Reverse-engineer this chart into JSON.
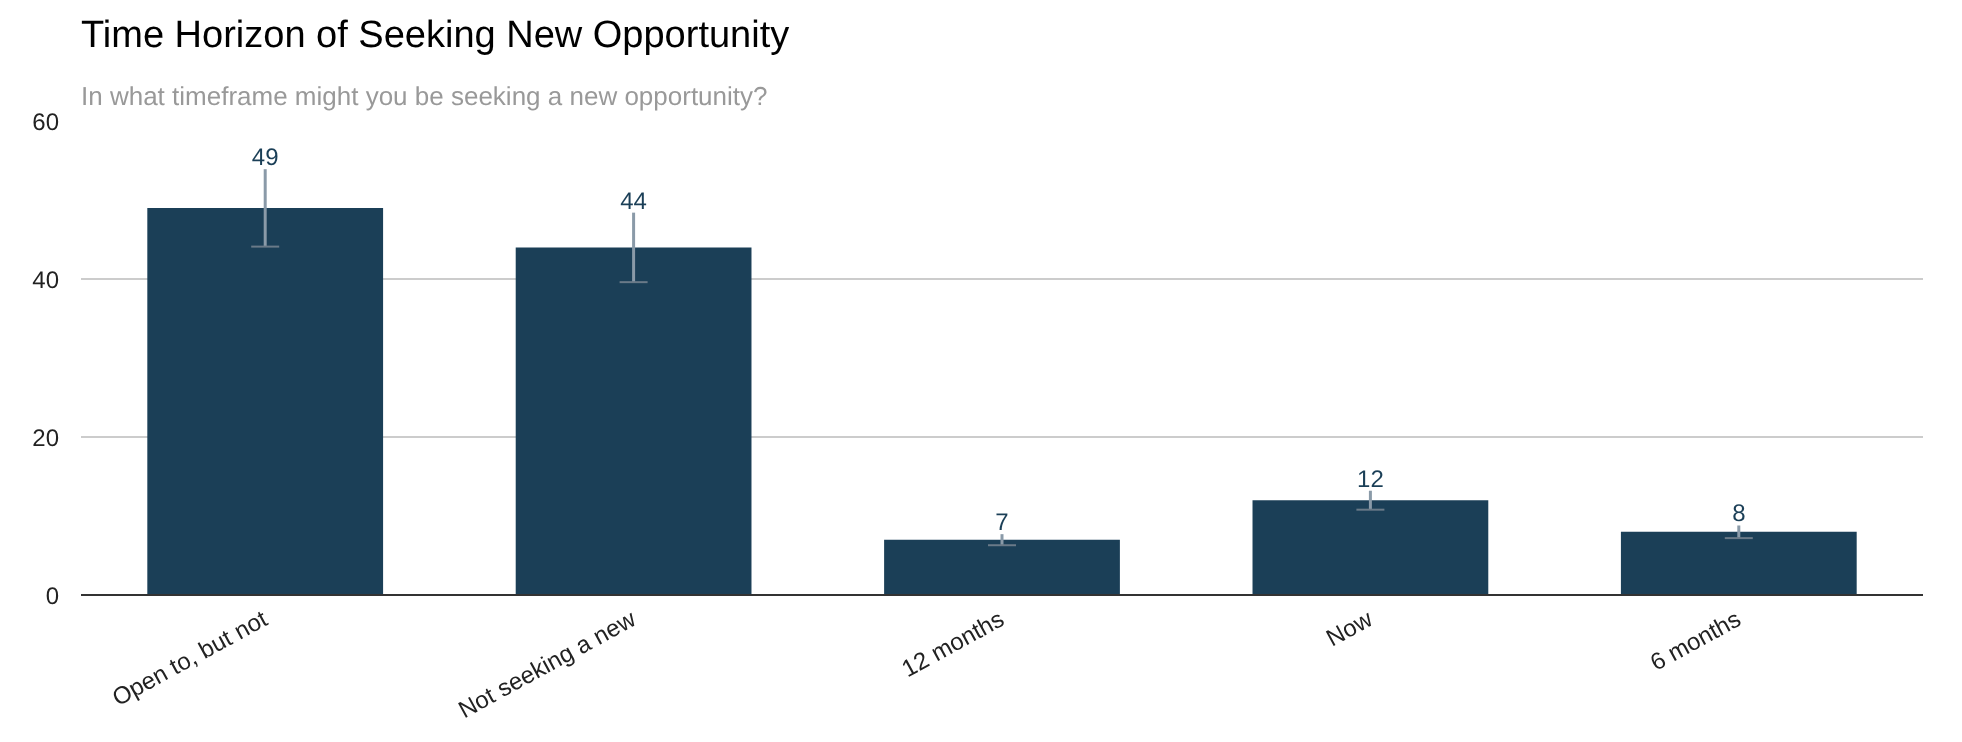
{
  "chart_data": {
    "type": "bar",
    "title": "Time Horizon of Seeking New Opportunity",
    "subtitle": "In what timeframe might you be seeking a new opportunity?",
    "categories": [
      "Open to, but not",
      "Not seeking a new",
      "12 months",
      "Now",
      "6 months"
    ],
    "values": [
      49,
      44,
      7,
      12,
      8
    ],
    "color": "#1b3f57",
    "errors": [
      4.9,
      4.4,
      0.7,
      1.2,
      0.8
    ],
    "ylim": [
      0,
      60
    ],
    "yticks": [
      0,
      20,
      40,
      60
    ],
    "grid": "y",
    "data_labels": true
  }
}
